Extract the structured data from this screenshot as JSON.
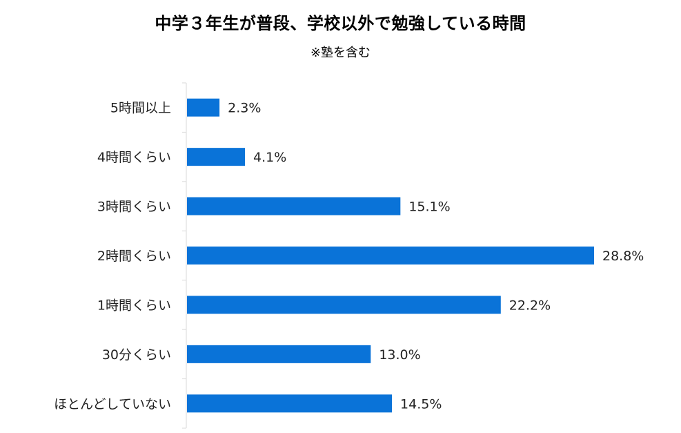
{
  "chart_data": {
    "type": "bar",
    "orientation": "horizontal",
    "title": "中学３年生が普段、学校以外で勉強している時間",
    "subtitle": "※塾を含む",
    "categories": [
      "5時間以上",
      "4時間くらい",
      "3時間くらい",
      "2時間くらい",
      "1時間くらい",
      "30分くらい",
      "ほとんどしていない"
    ],
    "values": [
      2.3,
      4.1,
      15.1,
      28.8,
      22.2,
      13.0,
      14.5
    ],
    "value_labels": [
      "2.3%",
      "4.1%",
      "15.1%",
      "28.8%",
      "22.2%",
      "13.0%",
      "14.5%"
    ],
    "unit": "%",
    "bar_color": "#0a73d8",
    "axis_color": "#d9d9d9",
    "xlim": [
      0,
      28.8
    ],
    "grid": false,
    "legend": "none"
  }
}
